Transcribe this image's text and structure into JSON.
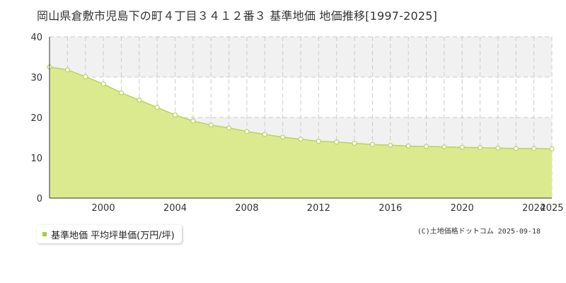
{
  "colors": {
    "area_fill": "#dcea8f",
    "line": "#b7d35a",
    "point_fill": "#ffffff",
    "grid": "#cccccc",
    "band": "#f1f1f1",
    "axis": "#333333",
    "legend_marker": "#a8cc3c"
  },
  "legend": {
    "label": "基準地価 平均坪単価(万円/坪)"
  },
  "copyright": "(C)土地価格ドットコム 2025-09-18",
  "chart_data": {
    "type": "area",
    "title": "岡山県倉敷市児島下の町４丁目３４１２番３ 基準地価 地価推移[1997-2025]",
    "xlabel": "",
    "ylabel": "",
    "x": [
      1997,
      1998,
      1999,
      2000,
      2001,
      2002,
      2003,
      2004,
      2005,
      2006,
      2007,
      2008,
      2009,
      2010,
      2011,
      2012,
      2013,
      2014,
      2015,
      2016,
      2017,
      2018,
      2019,
      2020,
      2021,
      2022,
      2023,
      2024,
      2025
    ],
    "series": [
      {
        "name": "基準地価 平均坪単価(万円/坪)",
        "values": [
          32.5,
          31.8,
          30.1,
          28.3,
          26.1,
          24.3,
          22.5,
          20.6,
          19.1,
          18.1,
          17.4,
          16.5,
          15.8,
          15.1,
          14.6,
          14.1,
          13.9,
          13.6,
          13.3,
          13.1,
          12.9,
          12.8,
          12.7,
          12.6,
          12.5,
          12.4,
          12.3,
          12.3,
          12.2
        ]
      }
    ],
    "xticks": [
      "2000",
      "2004",
      "2008",
      "2012",
      "2016",
      "2020",
      "2024",
      "2025"
    ],
    "xtick_values": [
      2000,
      2004,
      2008,
      2012,
      2016,
      2020,
      2024,
      2025
    ],
    "yticks": [
      "0",
      "10",
      "20",
      "30",
      "40"
    ],
    "ytick_values": [
      0,
      10,
      20,
      30,
      40
    ],
    "xlim": [
      1997,
      2025
    ],
    "ylim": [
      0,
      40
    ],
    "grid": true,
    "legend_position": "bottom-left"
  }
}
